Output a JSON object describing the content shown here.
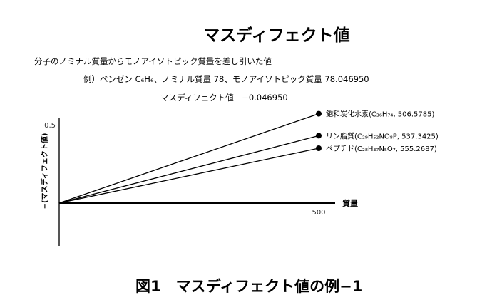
{
  "title": "マスディフェクト値",
  "description": [
    "分子のノミナル質量からモノアイソトピック質量を差し引いた値",
    "例）ベンゼン C₆H₆、ノミナル質量 78、モノアイソトピック質量 78.046950",
    "マスディフェクト値　−0.046950"
  ],
  "caption": "図1　マスディフェクト値の例−1",
  "chart_data": {
    "type": "line",
    "xlabel": "質量",
    "ylabel": "−(マスディフェクト値)",
    "x_ticks": [
      "500"
    ],
    "y_ticks": [
      "0.5"
    ],
    "xlim": [
      0,
      550
    ],
    "ylim": [
      -0.28,
      0.6
    ],
    "series": [
      {
        "label": "飽和炭化水素(C₃₆H₇₄, 506.5785)",
        "points": [
          [
            0,
            0
          ],
          [
            500,
            0.57
          ]
        ]
      },
      {
        "label": "リン脂質(C₂₉H₅₂NO₈P, 537.3425)",
        "points": [
          [
            0,
            0
          ],
          [
            500,
            0.43
          ]
        ]
      },
      {
        "label": "ペプチド(C₂₈H₃₇N₅O₇, 555.2687)",
        "points": [
          [
            0,
            0
          ],
          [
            500,
            0.35
          ]
        ]
      }
    ],
    "grid": false
  }
}
